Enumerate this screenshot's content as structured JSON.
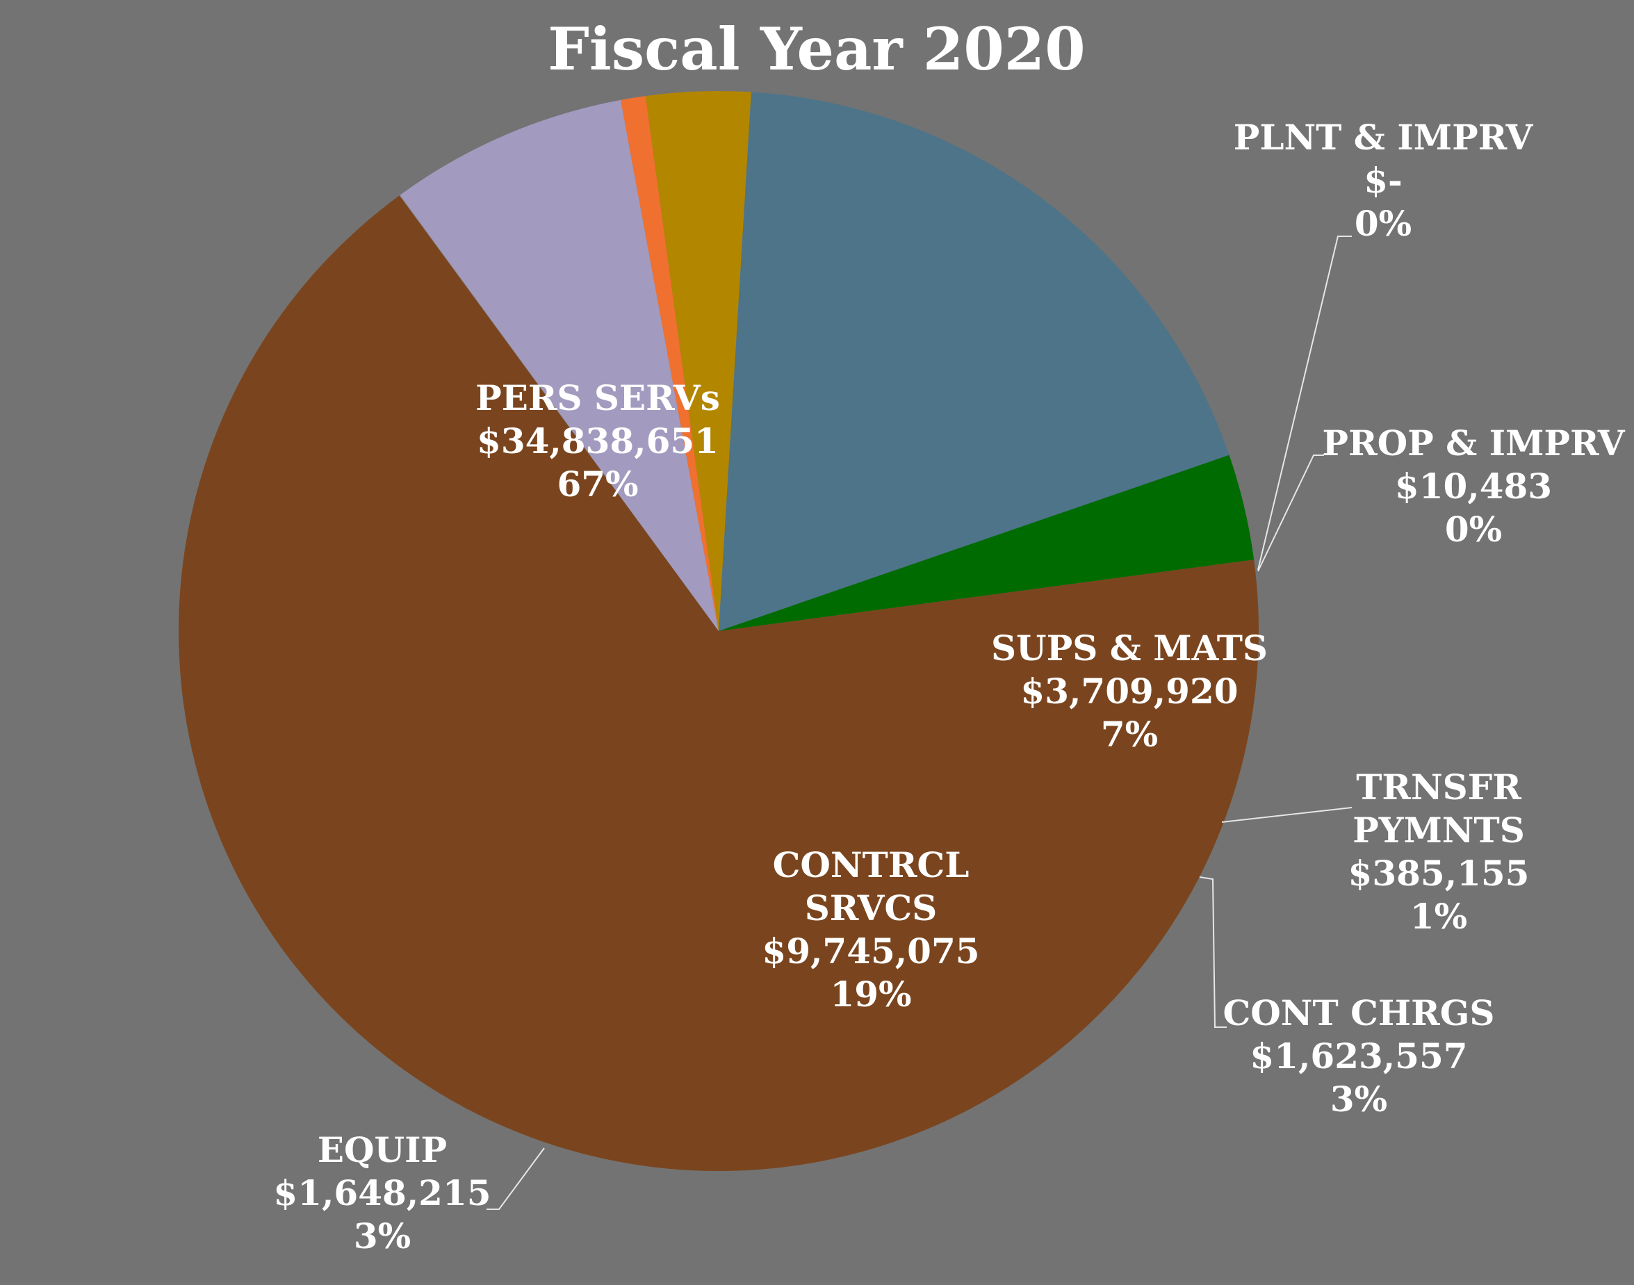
{
  "chart_data": {
    "type": "pie",
    "title": "Fiscal Year 2020",
    "slices": [
      {
        "name": "PERS SERVs",
        "value": 34838651,
        "value_label": "$34,838,651",
        "pct_label": "67%",
        "color": "#7a451e"
      },
      {
        "name": "PLNT & IMPRV",
        "value": 0,
        "value_label": "$-",
        "pct_label": "0%",
        "color": "#2d5a8c"
      },
      {
        "name": "PROP & IMPRV",
        "value": 10483,
        "value_label": "$10,483",
        "pct_label": "0%",
        "color": "#8b8b8b"
      },
      {
        "name": "SUPS & MATS",
        "value": 3709920,
        "value_label": "$3,709,920",
        "pct_label": "7%",
        "color": "#a29bbf"
      },
      {
        "name": "TRNSFR PYMNTS",
        "value": 385155,
        "value_label": "$385,155",
        "pct_label": "1%",
        "color": "#f07030"
      },
      {
        "name": "CONT CHRGS",
        "value": 1623557,
        "value_label": "$1,623,557",
        "pct_label": "3%",
        "color": "#b38600"
      },
      {
        "name": "CONTRCL SRVCS",
        "value": 9745075,
        "value_label": "$9,745,075",
        "pct_label": "19%",
        "color": "#4d7489"
      },
      {
        "name": "EQUIP",
        "value": 1648215,
        "value_label": "$1,648,215",
        "pct_label": "3%",
        "color": "#006b00"
      }
    ]
  }
}
